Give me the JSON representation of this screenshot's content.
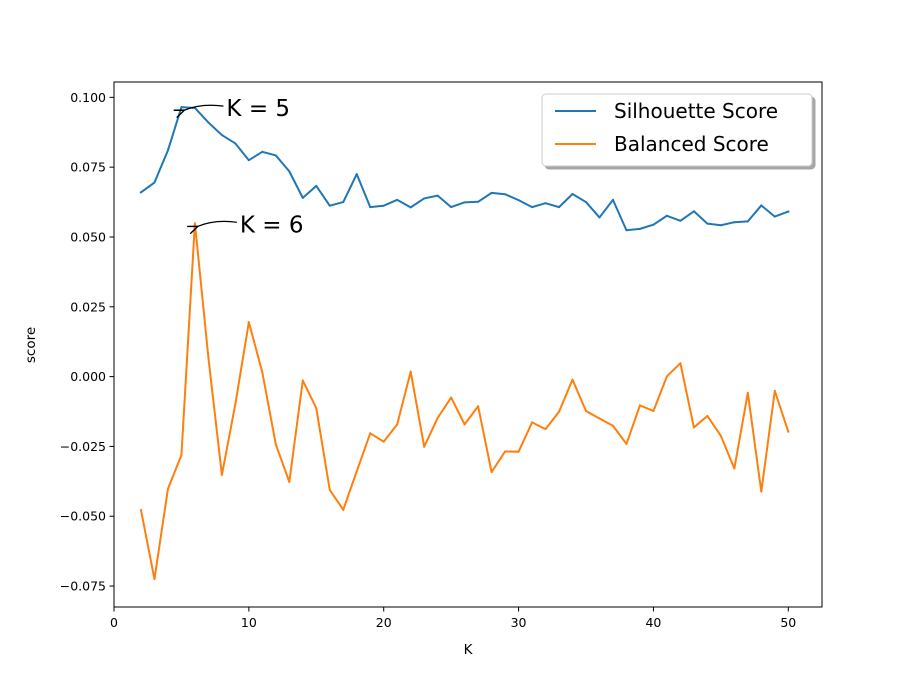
{
  "chart_data": {
    "type": "line",
    "xlabel": "K",
    "ylabel": "score",
    "xlim": [
      0,
      52.5
    ],
    "ylim": [
      -0.0825,
      0.1055
    ],
    "xticks": [
      0,
      10,
      20,
      30,
      40,
      50
    ],
    "yticks": [
      -0.075,
      -0.05,
      -0.025,
      0.0,
      0.025,
      0.05,
      0.075,
      0.1
    ],
    "xtick_labels": [
      "0",
      "10",
      "20",
      "30",
      "40",
      "50"
    ],
    "ytick_labels": [
      "−0.075",
      "−0.050",
      "−0.025",
      "0.000",
      "0.025",
      "0.050",
      "0.075",
      "0.100"
    ],
    "x": [
      2,
      3,
      4,
      5,
      6,
      7,
      8,
      9,
      10,
      11,
      12,
      13,
      14,
      15,
      16,
      17,
      18,
      19,
      20,
      21,
      22,
      23,
      24,
      25,
      26,
      27,
      28,
      29,
      30,
      31,
      32,
      33,
      34,
      35,
      36,
      37,
      38,
      39,
      40,
      41,
      42,
      43,
      44,
      45,
      46,
      47,
      48,
      49,
      50
    ],
    "series": [
      {
        "name": "Silhouette Score",
        "color": "#1f77b4",
        "values": [
          0.066,
          0.0695,
          0.081,
          0.0965,
          0.0962,
          0.091,
          0.0865,
          0.0835,
          0.0775,
          0.0805,
          0.0792,
          0.0735,
          0.064,
          0.0683,
          0.0612,
          0.0625,
          0.0725,
          0.0607,
          0.0612,
          0.0633,
          0.0606,
          0.0638,
          0.0648,
          0.0607,
          0.0624,
          0.0626,
          0.0658,
          0.0653,
          0.0632,
          0.0607,
          0.0621,
          0.0607,
          0.0654,
          0.0625,
          0.057,
          0.0633,
          0.0524,
          0.0529,
          0.0544,
          0.0576,
          0.0558,
          0.0592,
          0.0548,
          0.0542,
          0.0553,
          0.0556,
          0.0613,
          0.0573,
          0.0591
        ]
      },
      {
        "name": "Balanced Score",
        "color": "#ff7f0e",
        "values": [
          -0.0478,
          -0.0725,
          -0.0402,
          -0.0281,
          0.0549,
          0.0068,
          -0.0352,
          -0.0098,
          0.0195,
          0.0015,
          -0.0243,
          -0.0377,
          -0.0014,
          -0.0113,
          -0.0406,
          -0.0477,
          -0.0339,
          -0.0203,
          -0.0233,
          -0.0171,
          0.0018,
          -0.0251,
          -0.0148,
          -0.0075,
          -0.0171,
          -0.0106,
          -0.0342,
          -0.0268,
          -0.0269,
          -0.0164,
          -0.0188,
          -0.0126,
          -0.0011,
          -0.0123,
          -0.015,
          -0.0176,
          -0.0241,
          -0.0103,
          -0.0123,
          0.0001,
          0.0048,
          -0.0182,
          -0.0141,
          -0.0212,
          -0.0329,
          -0.0058,
          -0.0412,
          -0.0051,
          -0.0197
        ]
      }
    ],
    "annotations": [
      {
        "text": "K = 5",
        "x": 5,
        "y": 0.0965
      },
      {
        "text": "K = 6",
        "x": 6,
        "y": 0.0549
      }
    ],
    "legend_position": "top-right",
    "grid": false
  }
}
